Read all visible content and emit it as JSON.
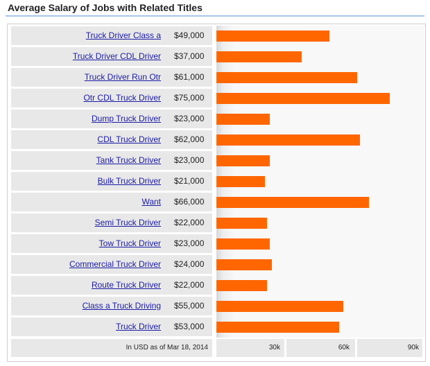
{
  "title": "Average Salary of Jobs with Related Titles",
  "footer_note": "In USD as of Mar 18, 2014",
  "colors": {
    "bar": "#ff6600",
    "link": "#1a1aa6",
    "rule": "#a9c6ea"
  },
  "chart_data": {
    "type": "bar",
    "orientation": "horizontal",
    "categories": [
      "Truck Driver Class a",
      "Truck Driver CDL Driver",
      "Truck Driver Run Otr",
      "Otr CDL Truck Driver",
      "Dump Truck Driver",
      "CDL Truck Driver",
      "Tank Truck Driver",
      "Bulk Truck Driver",
      "Want",
      "Semi Truck Driver",
      "Tow Truck Driver",
      "Commercial Truck Driver",
      "Route Truck Driver",
      "Class a Truck Driving",
      "Truck Driver"
    ],
    "values": [
      49000,
      37000,
      61000,
      75000,
      23000,
      62000,
      23000,
      21000,
      66000,
      22000,
      23000,
      24000,
      22000,
      55000,
      53000
    ],
    "value_labels": [
      "$49,000",
      "$37,000",
      "$61,000",
      "$75,000",
      "$23,000",
      "$62,000",
      "$23,000",
      "$21,000",
      "$66,000",
      "$22,000",
      "$23,000",
      "$24,000",
      "$22,000",
      "$55,000",
      "$53,000"
    ],
    "x_ticks": [
      30000,
      60000,
      90000
    ],
    "x_tick_labels": [
      "30k",
      "60k",
      "90k"
    ],
    "xlim": [
      0,
      90000
    ],
    "title": "Average Salary of Jobs with Related Titles",
    "xlabel": "",
    "ylabel": "",
    "grid": false
  }
}
